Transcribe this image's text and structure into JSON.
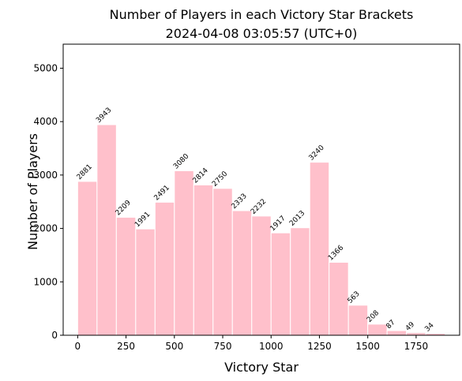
{
  "chart_data": {
    "type": "bar",
    "title_line1": "Number of Players in each Victory Star Brackets",
    "title_line2": "2024-04-08 03:05:57 (UTC+0)",
    "xlabel": "Victory Star",
    "ylabel": "Number of Players",
    "bar_color": "#ffc0cb",
    "bar_edge_color": "#ffffff",
    "bin_width": 100,
    "bins": [
      0,
      100,
      200,
      300,
      400,
      500,
      600,
      700,
      800,
      900,
      1000,
      1100,
      1200,
      1300,
      1400,
      1500,
      1600,
      1700,
      1800
    ],
    "values": [
      2881,
      3943,
      2209,
      1991,
      2491,
      3080,
      2814,
      2750,
      2333,
      2232,
      1917,
      2013,
      3240,
      1366,
      563,
      208,
      87,
      49,
      34
    ],
    "xlim": [
      -75,
      1975
    ],
    "ylim": [
      0,
      5450
    ],
    "xticks": [
      0,
      250,
      500,
      750,
      1000,
      1250,
      1500,
      1750
    ],
    "xtick_labels": [
      "0",
      "250",
      "500",
      "750",
      "1000",
      "1250",
      "1500",
      "1750"
    ],
    "yticks": [
      0,
      1000,
      2000,
      3000,
      4000,
      5000
    ],
    "ytick_labels": [
      "0",
      "1000",
      "2000",
      "3000",
      "4000",
      "5000"
    ],
    "grid": false,
    "legend": "none"
  }
}
